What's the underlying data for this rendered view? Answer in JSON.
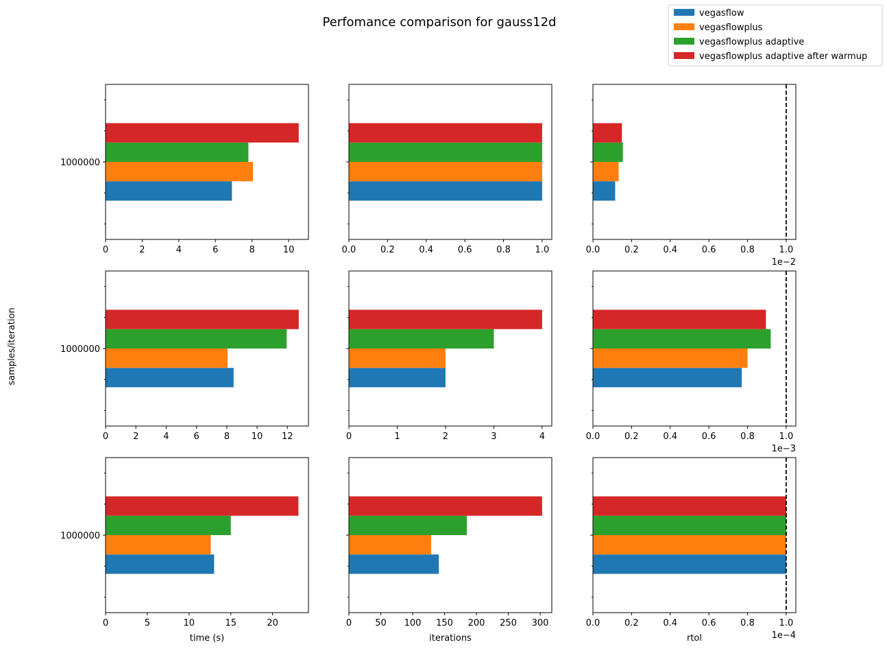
{
  "title": "Perfomance comparison for gauss12d",
  "ylabel": "samples/iteration",
  "colors": {
    "vegasflow": "#1f77b4",
    "vegasflowplus": "#ff7f0e",
    "vegasflowplus adaptive": "#2ca02c",
    "vegasflowplus adaptive after warmup": "#d62728"
  },
  "legend": {
    "placement": "top-right",
    "entries": [
      "vegasflow",
      "vegasflowplus",
      "vegasflowplus adaptive",
      "vegasflowplus adaptive after warmup"
    ]
  },
  "chart_data": [
    {
      "type": "bar",
      "orientation": "horizontal",
      "categories": [
        "1000000"
      ],
      "series": [
        {
          "name": "vegasflow",
          "values": [
            6.9
          ]
        },
        {
          "name": "vegasflowplus",
          "values": [
            8.05
          ]
        },
        {
          "name": "vegasflowplus adaptive",
          "values": [
            7.8
          ]
        },
        {
          "name": "vegasflowplus adaptive after warmup",
          "values": [
            10.55
          ]
        }
      ],
      "xlim": [
        0,
        11.08
      ],
      "xticks": [
        0,
        2,
        4,
        6,
        8,
        10
      ],
      "xticklabels": [
        "0",
        "2",
        "4",
        "6",
        "8",
        "10"
      ],
      "xlabel": "",
      "offset_label": "",
      "yticklabel": "1000000"
    },
    {
      "type": "bar",
      "orientation": "horizontal",
      "categories": [
        "1000000"
      ],
      "series": [
        {
          "name": "vegasflow",
          "values": [
            1
          ]
        },
        {
          "name": "vegasflowplus",
          "values": [
            1
          ]
        },
        {
          "name": "vegasflowplus adaptive",
          "values": [
            1
          ]
        },
        {
          "name": "vegasflowplus adaptive after warmup",
          "values": [
            1
          ]
        }
      ],
      "xlim": [
        0,
        1.05
      ],
      "xticks": [
        0,
        0.2,
        0.4,
        0.6,
        0.8,
        1.0
      ],
      "xticklabels": [
        "0.0",
        "0.2",
        "0.4",
        "0.6",
        "0.8",
        "1.0"
      ],
      "xlabel": "",
      "offset_label": "",
      "yticklabel": ""
    },
    {
      "type": "bar",
      "orientation": "horizontal",
      "categories": [
        "1000000"
      ],
      "series": [
        {
          "name": "vegasflow",
          "values": [
            0.115
          ]
        },
        {
          "name": "vegasflowplus",
          "values": [
            0.133
          ]
        },
        {
          "name": "vegasflowplus adaptive",
          "values": [
            0.155
          ]
        },
        {
          "name": "vegasflowplus adaptive after warmup",
          "values": [
            0.15
          ]
        }
      ],
      "xlim": [
        0,
        1.05
      ],
      "xticks": [
        0,
        0.2,
        0.4,
        0.6,
        0.8,
        1.0
      ],
      "xticklabels": [
        "0.0",
        "0.2",
        "0.4",
        "0.6",
        "0.8",
        "1.0"
      ],
      "xlabel": "",
      "offset_label": "1e−2",
      "yticklabel": "",
      "vline": 1.0
    },
    {
      "type": "bar",
      "orientation": "horizontal",
      "categories": [
        "1000000"
      ],
      "series": [
        {
          "name": "vegasflow",
          "values": [
            8.45
          ]
        },
        {
          "name": "vegasflowplus",
          "values": [
            8.05
          ]
        },
        {
          "name": "vegasflowplus adaptive",
          "values": [
            11.95
          ]
        },
        {
          "name": "vegasflowplus adaptive after warmup",
          "values": [
            12.75
          ]
        }
      ],
      "xlim": [
        0,
        13.39
      ],
      "xticks": [
        0,
        2,
        4,
        6,
        8,
        10,
        12
      ],
      "xticklabels": [
        "0",
        "2",
        "4",
        "6",
        "8",
        "10",
        "12"
      ],
      "xlabel": "",
      "offset_label": "",
      "yticklabel": "1000000"
    },
    {
      "type": "bar",
      "orientation": "horizontal",
      "categories": [
        "1000000"
      ],
      "series": [
        {
          "name": "vegasflow",
          "values": [
            2
          ]
        },
        {
          "name": "vegasflowplus",
          "values": [
            2
          ]
        },
        {
          "name": "vegasflowplus adaptive",
          "values": [
            3
          ]
        },
        {
          "name": "vegasflowplus adaptive after warmup",
          "values": [
            4
          ]
        }
      ],
      "xlim": [
        0,
        4.2
      ],
      "xticks": [
        0,
        1,
        2,
        3,
        4
      ],
      "xticklabels": [
        "0",
        "1",
        "2",
        "3",
        "4"
      ],
      "xlabel": "",
      "offset_label": "",
      "yticklabel": ""
    },
    {
      "type": "bar",
      "orientation": "horizontal",
      "categories": [
        "1000000"
      ],
      "series": [
        {
          "name": "vegasflow",
          "values": [
            0.77
          ]
        },
        {
          "name": "vegasflowplus",
          "values": [
            0.8
          ]
        },
        {
          "name": "vegasflowplus adaptive",
          "values": [
            0.92
          ]
        },
        {
          "name": "vegasflowplus adaptive after warmup",
          "values": [
            0.895
          ]
        }
      ],
      "xlim": [
        0,
        1.05
      ],
      "xticks": [
        0,
        0.2,
        0.4,
        0.6,
        0.8,
        1.0
      ],
      "xticklabels": [
        "0.0",
        "0.2",
        "0.4",
        "0.6",
        "0.8",
        "1.0"
      ],
      "xlabel": "",
      "offset_label": "1e−3",
      "yticklabel": "",
      "vline": 1.0
    },
    {
      "type": "bar",
      "orientation": "horizontal",
      "categories": [
        "1000000"
      ],
      "series": [
        {
          "name": "vegasflow",
          "values": [
            13
          ]
        },
        {
          "name": "vegasflowplus",
          "values": [
            12.6
          ]
        },
        {
          "name": "vegasflowplus adaptive",
          "values": [
            15
          ]
        },
        {
          "name": "vegasflowplus adaptive after warmup",
          "values": [
            23.1
          ]
        }
      ],
      "xlim": [
        0,
        24.3
      ],
      "xticks": [
        0,
        5,
        10,
        15,
        20
      ],
      "xticklabels": [
        "0",
        "5",
        "10",
        "15",
        "20"
      ],
      "xlabel": "time (s)",
      "offset_label": "",
      "yticklabel": "1000000"
    },
    {
      "type": "bar",
      "orientation": "horizontal",
      "categories": [
        "1000000"
      ],
      "series": [
        {
          "name": "vegasflow",
          "values": [
            141
          ]
        },
        {
          "name": "vegasflowplus",
          "values": [
            129
          ]
        },
        {
          "name": "vegasflowplus adaptive",
          "values": [
            185
          ]
        },
        {
          "name": "vegasflowplus adaptive after warmup",
          "values": [
            303
          ]
        }
      ],
      "xlim": [
        0,
        318.2
      ],
      "xticks": [
        0,
        50,
        100,
        150,
        200,
        250,
        300
      ],
      "xticklabels": [
        "0",
        "50",
        "100",
        "150",
        "200",
        "250",
        "300"
      ],
      "xlabel": "iterations",
      "offset_label": "",
      "yticklabel": ""
    },
    {
      "type": "bar",
      "orientation": "horizontal",
      "categories": [
        "1000000"
      ],
      "series": [
        {
          "name": "vegasflow",
          "values": [
            1
          ]
        },
        {
          "name": "vegasflowplus",
          "values": [
            1
          ]
        },
        {
          "name": "vegasflowplus adaptive",
          "values": [
            1
          ]
        },
        {
          "name": "vegasflowplus adaptive after warmup",
          "values": [
            1
          ]
        }
      ],
      "xlim": [
        0,
        1.05
      ],
      "xticks": [
        0,
        0.2,
        0.4,
        0.6,
        0.8,
        1.0
      ],
      "xticklabels": [
        "0.0",
        "0.2",
        "0.4",
        "0.6",
        "0.8",
        "1.0"
      ],
      "xlabel": "rtol",
      "offset_label": "1e−4",
      "yticklabel": "",
      "vline": 1.0
    }
  ]
}
